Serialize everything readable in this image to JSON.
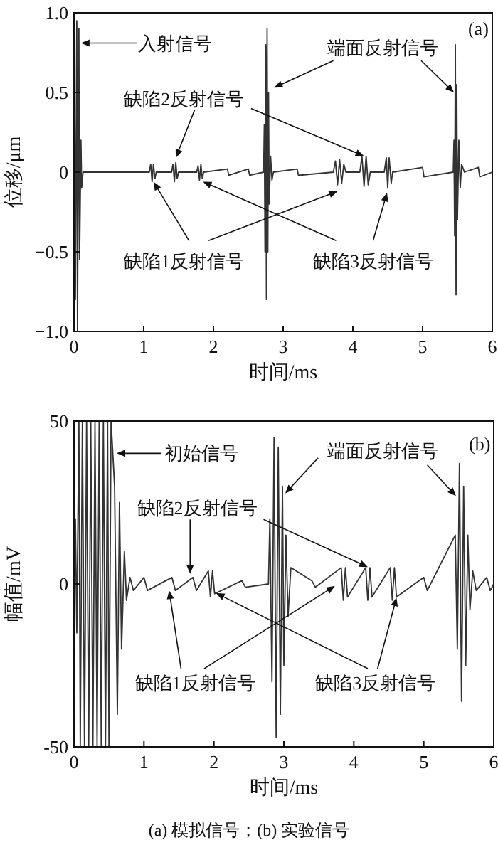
{
  "chart_data": [
    {
      "type": "line",
      "xlabel": "时间/ms",
      "ylabel": "位移/μm",
      "xlim": [
        0,
        6
      ],
      "xticks": [
        0,
        1,
        2,
        3,
        4,
        5,
        6
      ],
      "ylim": [
        -1,
        1
      ],
      "yticks": [
        {
          "value": -1,
          "label": "−1.0"
        },
        {
          "value": -0.5,
          "label": "−0.5"
        },
        0,
        {
          "value": 0.5,
          "label": "0.5"
        },
        {
          "value": 1,
          "label": "1.0"
        }
      ],
      "series": [
        {
          "color": "#333333",
          "x": [
            0,
            0.01,
            0.02,
            0.04,
            0.05,
            0.07,
            0.08,
            0.1,
            0.11,
            0.13,
            1.08,
            1.1,
            1.12,
            1.14,
            1.16,
            1.18,
            1.4,
            1.42,
            1.44,
            1.46,
            1.48,
            1.5,
            1.76,
            1.78,
            1.8,
            1.82,
            1.84,
            1.86,
            2.2,
            2.22,
            2.5,
            2.52,
            2.72,
            2.73,
            2.74,
            2.75,
            2.76,
            2.77,
            2.78,
            2.79,
            2.8,
            2.82,
            2.84,
            2.86,
            3.2,
            3.22,
            3.72,
            3.75,
            3.78,
            3.81,
            3.84,
            3.87,
            3.9,
            4.1,
            4.13,
            4.16,
            4.19,
            4.22,
            4.25,
            4.45,
            4.48,
            4.5,
            4.52,
            4.55,
            4.57,
            5.0,
            5.02,
            5.44,
            5.45,
            5.46,
            5.47,
            5.48,
            5.49,
            5.5,
            5.52,
            5.54,
            5.56,
            5.6,
            5.8,
            5.82,
            6
          ],
          "values": [
            0,
            0.5,
            -0.8,
            0.95,
            -1.0,
            0.9,
            -0.55,
            0.2,
            -0.1,
            0,
            0,
            0.05,
            -0.06,
            0.05,
            -0.04,
            0,
            0,
            0.05,
            -0.06,
            0.06,
            -0.04,
            0,
            0,
            0.04,
            -0.05,
            0.05,
            -0.04,
            0,
            0.02,
            -0.02,
            0.02,
            -0.02,
            0,
            0.3,
            -0.5,
            0.8,
            -0.8,
            0.9,
            -0.5,
            0.5,
            -0.2,
            0.1,
            -0.05,
            0,
            0.02,
            -0.02,
            0,
            0.07,
            -0.08,
            0.08,
            -0.07,
            0.05,
            0,
            0,
            0.1,
            -0.09,
            0.1,
            -0.08,
            0,
            0,
            0.09,
            -0.1,
            0.09,
            -0.07,
            0,
            0.03,
            -0.03,
            0,
            0.2,
            -0.4,
            0.8,
            -0.77,
            0.55,
            -0.3,
            0.2,
            -0.1,
            0.05,
            0,
            0.03,
            -0.03,
            0
          ]
        }
      ],
      "annotations": [
        "(a)",
        {
          "text": "入射信号",
          "x": 0.1,
          "y": 0.81
        },
        {
          "text": "端面反射信号",
          "x": 2.87,
          "y": 0.53
        },
        {
          "text": "缺陷2反射信号",
          "x": 1.46,
          "y": 0.09
        },
        {
          "text": "缺陷1反射信号",
          "x": 1.14,
          "y": -0.06
        },
        {
          "text": "缺陷3反射信号",
          "x": 1.85,
          "y": -0.06
        }
      ]
    },
    {
      "type": "line",
      "xlabel": "时间/ms",
      "ylabel": "幅值/mV",
      "xlim": [
        0,
        6
      ],
      "xticks": [
        0,
        1,
        2,
        3,
        4,
        5,
        6
      ],
      "ylim": [
        -50,
        50
      ],
      "yticks": [
        -50,
        0,
        50
      ],
      "series": [
        {
          "color": "#333333",
          "x": [
            0,
            0.02,
            0.04,
            0.07,
            0.09,
            0.12,
            0.15,
            0.18,
            0.21,
            0.24,
            0.27,
            0.3,
            0.33,
            0.36,
            0.39,
            0.42,
            0.45,
            0.48,
            0.5,
            0.53,
            0.58,
            0.62,
            0.65,
            0.68,
            0.72,
            0.75,
            0.8,
            0.85,
            1.0,
            1.05,
            1.4,
            1.45,
            1.7,
            1.75,
            1.92,
            1.95,
            1.98,
            2.01,
            2.4,
            2.45,
            2.78,
            2.8,
            2.83,
            2.86,
            2.89,
            2.92,
            2.95,
            2.98,
            3.0,
            3.03,
            3.06,
            3.1,
            3.4,
            3.45,
            3.82,
            3.85,
            3.88,
            3.91,
            4.17,
            4.2,
            4.23,
            4.26,
            4.52,
            4.55,
            4.58,
            4.61,
            5.0,
            5.05,
            5.45,
            5.48,
            5.51,
            5.54,
            5.57,
            5.6,
            5.63,
            5.66,
            5.7,
            5.75,
            5.9,
            5.95,
            6
          ],
          "values": [
            0,
            20,
            -15,
            50,
            -50,
            50,
            -50,
            50,
            -50,
            50,
            -50,
            50,
            -50,
            50,
            -50,
            50,
            -50,
            50,
            -50,
            50,
            30,
            -40,
            25,
            -20,
            10,
            -5,
            2,
            -2,
            2,
            -2,
            2,
            -2,
            2,
            -2,
            4,
            -4,
            4,
            -3,
            1,
            -1,
            0,
            20,
            -30,
            45,
            -47,
            42,
            -40,
            30,
            -25,
            15,
            -10,
            5,
            1,
            -1,
            5,
            -5,
            5,
            -4,
            5,
            -5,
            5,
            -4,
            5,
            -5,
            5,
            -4,
            2,
            -2,
            15,
            -20,
            37,
            -36,
            30,
            -25,
            15,
            -8,
            4,
            -2,
            2,
            -2,
            0
          ]
        }
      ],
      "annotations": [
        "(b)",
        {
          "text": "初始信号",
          "x": 0.61,
          "y": 40.1
        },
        {
          "text": "端面反射信号",
          "x": 3.02,
          "y": 27.8
        },
        {
          "text": "缺陷2反射信号",
          "x": 1.66,
          "y": 3.1
        },
        {
          "text": "缺陷1反射信号",
          "x": 1.36,
          "y": -2
        },
        {
          "text": "缺陷3反射信号",
          "x": 2.03,
          "y": -2.8
        },
        "(a) 模拟信号；(b) 实验信号"
      ]
    }
  ]
}
